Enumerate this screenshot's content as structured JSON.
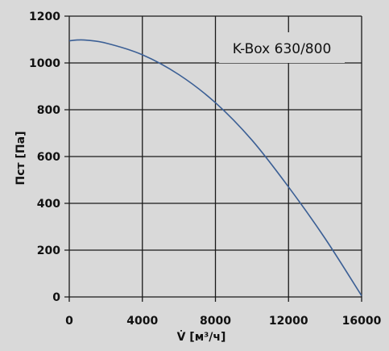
{
  "chart_data": {
    "type": "line",
    "title": "K-Box 630/800",
    "xlabel": "V̇ [м³/ч]",
    "ylabel": "Пст [Па]",
    "xlim": [
      0,
      16000
    ],
    "ylim": [
      0,
      1200
    ],
    "xticks": [
      0,
      4000,
      8000,
      12000,
      16000
    ],
    "yticks": [
      0,
      200,
      400,
      600,
      800,
      1000,
      1200
    ],
    "grid": true,
    "colors": {
      "line": "#3b5f95",
      "grid": "#1a1a1a",
      "background": "#d9d9d9"
    },
    "series": [
      {
        "x": [
          0,
          800,
          2000,
          4000,
          6000,
          8000,
          10000,
          12000,
          14000,
          16000
        ],
        "y": [
          1095,
          1098,
          1085,
          1035,
          950,
          830,
          670,
          470,
          250,
          5
        ]
      }
    ]
  }
}
